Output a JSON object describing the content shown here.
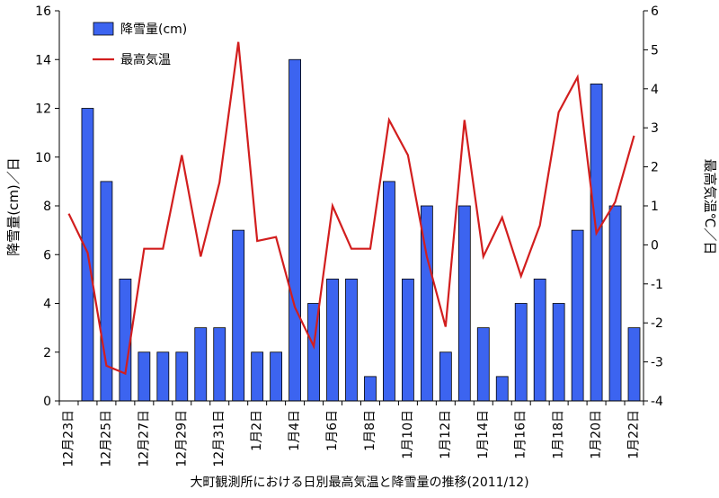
{
  "chart_data": {
    "type": "bar",
    "title": "大町観測所における日別最高気温と降雪量の推移(2011/12)",
    "ylabel": "降雪量(cm)／日",
    "y2label": "最高気温℃／日",
    "ylim": [
      0,
      16
    ],
    "y2lim": [
      -4,
      6
    ],
    "yticks": [
      0,
      2,
      4,
      6,
      8,
      10,
      12,
      14,
      16
    ],
    "y2ticks": [
      -4,
      -3,
      -2,
      -1,
      0,
      1,
      2,
      3,
      4,
      5,
      6
    ],
    "categories": [
      "12月23日",
      "12月24日",
      "12月25日",
      "12月26日",
      "12月27日",
      "12月28日",
      "12月29日",
      "12月30日",
      "12月31日",
      "1月1日",
      "1月2日",
      "1月3日",
      "1月4日",
      "1月5日",
      "1月6日",
      "1月7日",
      "1月8日",
      "1月9日",
      "1月10日",
      "1月11日",
      "1月12日",
      "1月13日",
      "1月14日",
      "1月15日",
      "1月16日",
      "1月17日",
      "1月18日",
      "1月19日",
      "1月20日",
      "1月21日",
      "1月22日"
    ],
    "tick_labels": [
      "12月23日",
      "",
      "12月25日",
      "",
      "12月27日",
      "",
      "12月29日",
      "",
      "12月31日",
      "",
      "1月2日",
      "",
      "1月4日",
      "",
      "1月6日",
      "",
      "1月8日",
      "",
      "1月10日",
      "",
      "1月12日",
      "",
      "1月14日",
      "",
      "1月16日",
      "",
      "1月18日",
      "",
      "1月20日",
      "",
      "1月22日"
    ],
    "series": [
      {
        "name": "降雪量(cm)",
        "type": "bar",
        "axis": "left",
        "color": "#3c64f0",
        "values": [
          0,
          12,
          9,
          5,
          2,
          2,
          2,
          3,
          3,
          7,
          2,
          2,
          14,
          4,
          5,
          5,
          1,
          9,
          5,
          8,
          2,
          8,
          3,
          1,
          4,
          5,
          4,
          7,
          13,
          8,
          3
        ]
      },
      {
        "name": "最高気温",
        "type": "line",
        "axis": "right",
        "color": "#d21e1e",
        "values": [
          0.8,
          -0.2,
          -3.1,
          -3.3,
          -0.1,
          -0.1,
          2.3,
          -0.3,
          1.6,
          5.2,
          0.1,
          0.2,
          -1.6,
          -2.6,
          1.0,
          -0.1,
          -0.1,
          3.2,
          2.3,
          -0.3,
          -2.1,
          3.2,
          -0.3,
          0.7,
          -0.8,
          0.5,
          3.4,
          4.3,
          0.3,
          1.1,
          2.8
        ]
      }
    ],
    "legend_position": "top-left",
    "grid": false
  }
}
